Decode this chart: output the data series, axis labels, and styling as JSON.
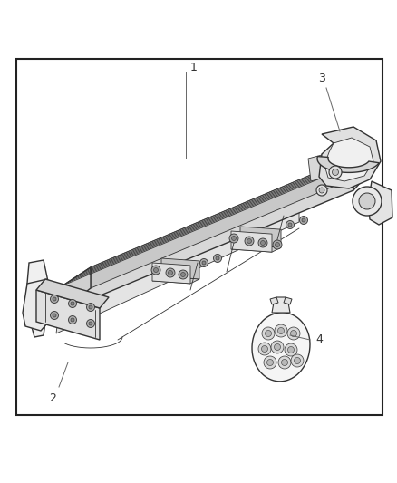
{
  "bg_color": "#ffffff",
  "border_color": "#222222",
  "line_color": "#333333",
  "label_color": "#555555",
  "fig_width": 4.38,
  "fig_height": 5.33,
  "dpi": 100
}
